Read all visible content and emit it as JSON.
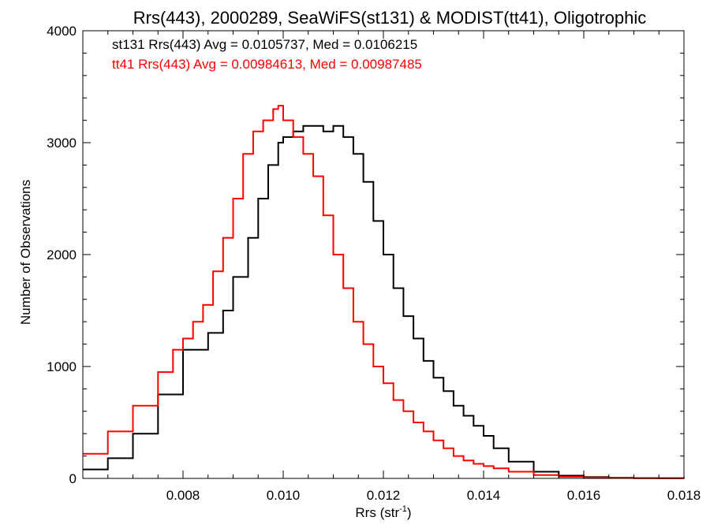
{
  "chart_data": {
    "type": "line",
    "title": "Rrs(443), 2000289, SeaWiFS(st131) & MODIST(tt41), Oligotrophic",
    "xlabel": "Rrs (str",
    "xlabel_sup": "-1",
    "xlabel_close": ")",
    "ylabel": "Number of Observations",
    "xlim": [
      0.006,
      0.018
    ],
    "ylim": [
      0,
      4000
    ],
    "xticks": [
      0.008,
      0.01,
      0.012,
      0.014,
      0.016,
      0.018
    ],
    "xtick_labels": [
      "0.008",
      "0.010",
      "0.012",
      "0.014",
      "0.016",
      "0.018"
    ],
    "yticks": [
      0,
      1000,
      2000,
      3000,
      4000
    ],
    "ytick_labels": [
      "0",
      "1000",
      "2000",
      "3000",
      "4000"
    ],
    "grid": false,
    "annotations": [
      {
        "text": "st131 Rrs(443) Avg = 0.0105737, Med = 0.0106215",
        "color": "#000000"
      },
      {
        "text": "tt41 Rrs(443) Avg = 0.00984613, Med = 0.00987485",
        "color": "#ff0000"
      }
    ],
    "series": [
      {
        "color": "#000000",
        "step": true,
        "x": [
          0.006,
          0.0065,
          0.007,
          0.0075,
          0.008,
          0.0085,
          0.0088,
          0.009,
          0.0093,
          0.0095,
          0.0097,
          0.0099,
          0.01,
          0.0102,
          0.0104,
          0.0106,
          0.0108,
          0.011,
          0.0112,
          0.0114,
          0.0116,
          0.0118,
          0.012,
          0.0122,
          0.0124,
          0.0126,
          0.0128,
          0.013,
          0.0132,
          0.0134,
          0.0136,
          0.0138,
          0.014,
          0.0142,
          0.0145,
          0.015,
          0.0155,
          0.016,
          0.0165,
          0.017,
          0.0175,
          0.018
        ],
        "y": [
          80,
          180,
          400,
          750,
          1150,
          1300,
          1500,
          1800,
          2150,
          2500,
          2800,
          3000,
          3050,
          3100,
          3150,
          3150,
          3100,
          3150,
          3050,
          2900,
          2650,
          2300,
          2000,
          1700,
          1450,
          1250,
          1050,
          900,
          780,
          650,
          560,
          470,
          380,
          270,
          150,
          60,
          25,
          12,
          6,
          3,
          2,
          1
        ]
      },
      {
        "color": "#ff0000",
        "step": true,
        "x": [
          0.006,
          0.0065,
          0.007,
          0.0075,
          0.0078,
          0.008,
          0.0082,
          0.0084,
          0.0086,
          0.0088,
          0.009,
          0.0092,
          0.0094,
          0.0096,
          0.0098,
          0.0099,
          0.01,
          0.0102,
          0.0104,
          0.0106,
          0.0108,
          0.011,
          0.0112,
          0.0114,
          0.0116,
          0.0118,
          0.012,
          0.0122,
          0.0124,
          0.0126,
          0.0128,
          0.013,
          0.0132,
          0.0134,
          0.0136,
          0.0138,
          0.014,
          0.0142,
          0.0145,
          0.015,
          0.0155,
          0.016,
          0.0165,
          0.017,
          0.018
        ],
        "y": [
          220,
          420,
          650,
          950,
          1150,
          1250,
          1400,
          1550,
          1850,
          2150,
          2500,
          2900,
          3100,
          3200,
          3300,
          3330,
          3200,
          3050,
          2900,
          2700,
          2350,
          2000,
          1700,
          1400,
          1200,
          1000,
          850,
          700,
          600,
          500,
          420,
          340,
          270,
          200,
          160,
          130,
          110,
          90,
          60,
          30,
          15,
          8,
          4,
          2,
          1
        ]
      }
    ]
  }
}
